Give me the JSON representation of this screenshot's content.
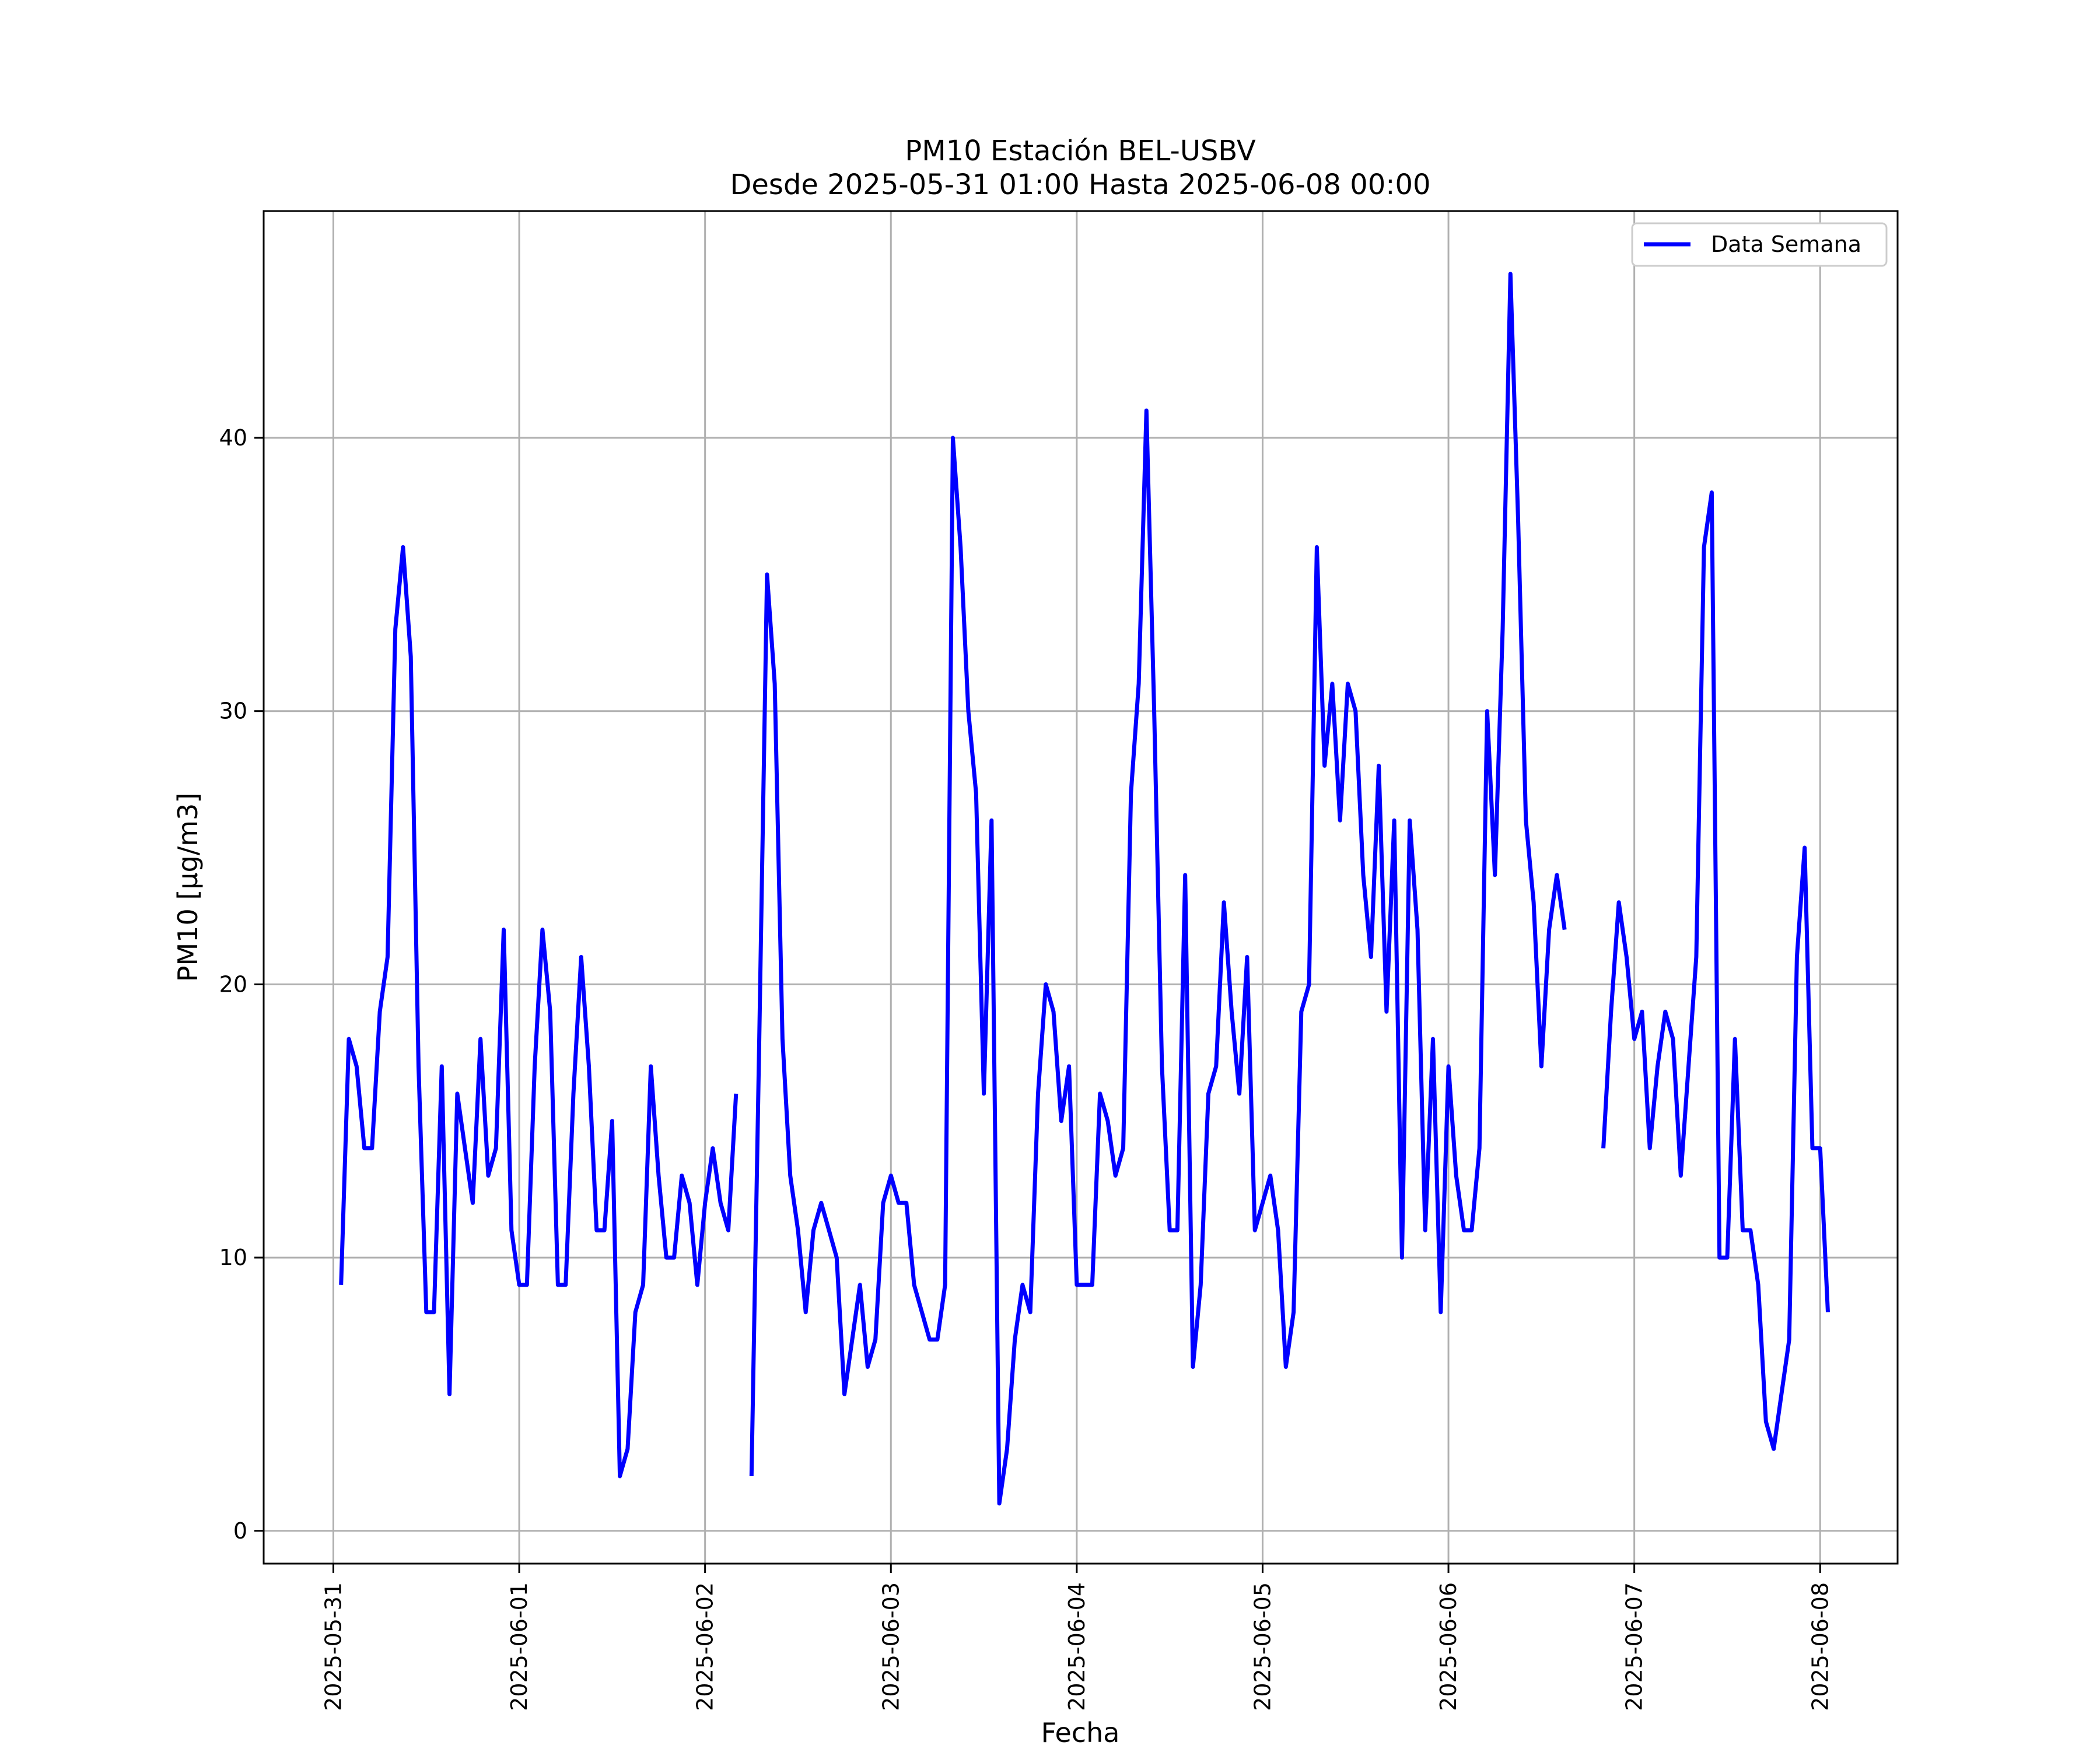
{
  "chart_data": {
    "type": "line",
    "title": "PM10 Estación BEL-USBV",
    "subtitle": "Desde 2025-05-31 01:00 Hasta 2025-06-08 00:00",
    "xlabel": "Fecha",
    "ylabel": "PM10 [μg/m3]",
    "ylim": [
      -1.2,
      48.3
    ],
    "xlim": [
      "2025-05-30T15:00",
      "2025-06-08T10:00"
    ],
    "grid": true,
    "legend_position": "top-right",
    "x_ticks": [
      "2025-05-31",
      "2025-06-01",
      "2025-06-02",
      "2025-06-03",
      "2025-06-04",
      "2025-06-05",
      "2025-06-06",
      "2025-06-07",
      "2025-06-08"
    ],
    "y_ticks": [
      0,
      10,
      20,
      30,
      40
    ],
    "colors": {
      "series": "#0000ff"
    },
    "series": [
      {
        "name": "Data Semana",
        "start": "2025-05-31T01:00",
        "interval": "1h",
        "values": [
          9,
          18,
          17,
          14,
          14,
          19,
          21,
          33,
          36,
          32,
          17,
          8,
          8,
          17,
          5,
          16,
          14,
          12,
          18,
          13,
          14,
          22,
          11,
          9,
          9,
          17,
          22,
          19,
          9,
          9,
          16,
          21,
          17,
          11,
          11,
          15,
          2,
          3,
          8,
          9,
          17,
          13,
          10,
          10,
          13,
          12,
          9,
          12,
          14,
          12,
          11,
          16,
          null,
          2,
          18,
          35,
          31,
          18,
          13,
          11,
          8,
          11,
          12,
          11,
          10,
          5,
          7,
          9,
          6,
          7,
          12,
          13,
          12,
          12,
          9,
          8,
          7,
          7,
          9,
          40,
          36,
          30,
          27,
          16,
          26,
          1,
          3,
          7,
          9,
          8,
          16,
          20,
          19,
          15,
          17,
          9,
          9,
          9,
          16,
          15,
          13,
          14,
          27,
          31,
          41,
          30,
          17,
          11,
          11,
          24,
          6,
          9,
          16,
          17,
          23,
          19,
          16,
          21,
          11,
          12,
          13,
          11,
          6,
          8,
          19,
          20,
          36,
          28,
          31,
          26,
          31,
          30,
          24,
          21,
          28,
          19,
          26,
          10,
          26,
          22,
          11,
          18,
          8,
          17,
          13,
          11,
          11,
          14,
          30,
          24,
          33,
          46,
          37,
          26,
          23,
          17,
          22,
          24,
          22,
          null,
          null,
          null,
          null,
          14,
          19,
          23,
          21,
          18,
          19,
          14,
          17,
          19,
          18,
          13,
          17,
          21,
          36,
          38,
          10,
          10,
          18,
          11,
          11,
          9,
          4,
          3,
          5,
          7,
          21,
          25,
          14,
          14,
          8
        ]
      }
    ]
  }
}
